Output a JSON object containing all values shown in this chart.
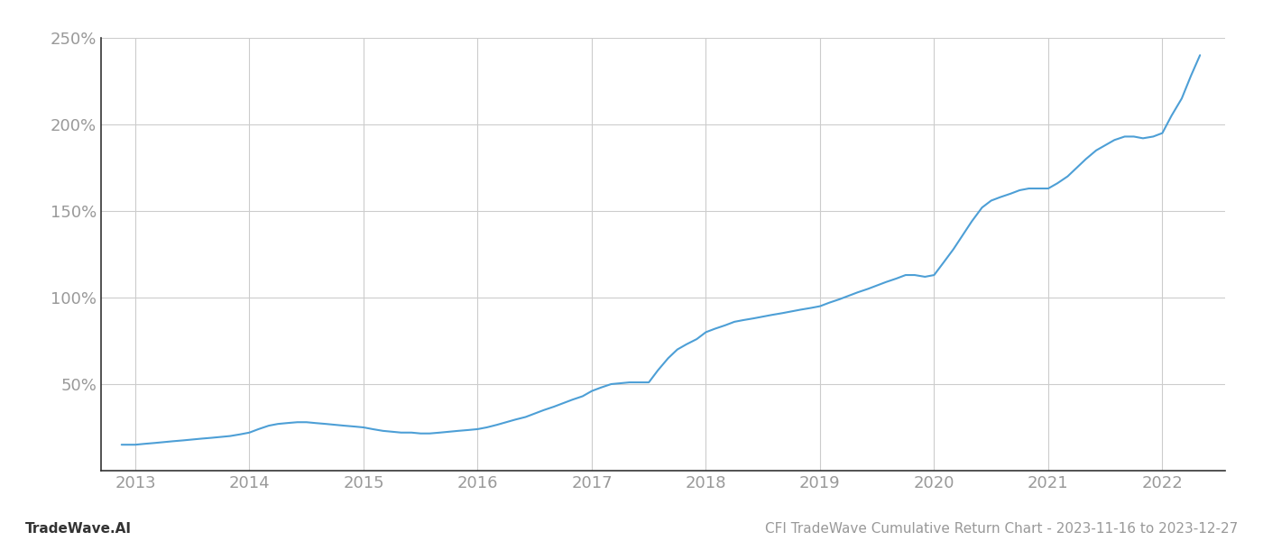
{
  "title": "",
  "footer_left": "TradeWave.AI",
  "footer_right": "CFI TradeWave Cumulative Return Chart - 2023-11-16 to 2023-12-27",
  "line_color": "#4d9fd6",
  "background_color": "#ffffff",
  "grid_color": "#cccccc",
  "x_years": [
    2013,
    2014,
    2015,
    2016,
    2017,
    2018,
    2019,
    2020,
    2021,
    2022
  ],
  "x_data": [
    2012.88,
    2013.0,
    2013.08,
    2013.17,
    2013.25,
    2013.33,
    2013.42,
    2013.5,
    2013.58,
    2013.67,
    2013.75,
    2013.83,
    2013.92,
    2014.0,
    2014.08,
    2014.17,
    2014.25,
    2014.33,
    2014.42,
    2014.5,
    2014.58,
    2014.67,
    2014.75,
    2014.83,
    2014.92,
    2015.0,
    2015.08,
    2015.17,
    2015.25,
    2015.33,
    2015.42,
    2015.5,
    2015.58,
    2015.67,
    2015.75,
    2015.83,
    2015.92,
    2016.0,
    2016.08,
    2016.17,
    2016.25,
    2016.33,
    2016.42,
    2016.5,
    2016.58,
    2016.67,
    2016.75,
    2016.83,
    2016.92,
    2017.0,
    2017.08,
    2017.17,
    2017.25,
    2017.33,
    2017.42,
    2017.5,
    2017.58,
    2017.67,
    2017.75,
    2017.83,
    2017.92,
    2018.0,
    2018.08,
    2018.17,
    2018.25,
    2018.33,
    2018.42,
    2018.5,
    2018.58,
    2018.67,
    2018.75,
    2018.83,
    2018.92,
    2019.0,
    2019.08,
    2019.17,
    2019.25,
    2019.33,
    2019.42,
    2019.5,
    2019.58,
    2019.67,
    2019.75,
    2019.83,
    2019.92,
    2020.0,
    2020.08,
    2020.17,
    2020.25,
    2020.33,
    2020.42,
    2020.5,
    2020.58,
    2020.67,
    2020.75,
    2020.83,
    2020.92,
    2021.0,
    2021.08,
    2021.17,
    2021.25,
    2021.33,
    2021.42,
    2021.5,
    2021.58,
    2021.67,
    2021.75,
    2021.83,
    2021.92,
    2022.0,
    2022.08,
    2022.17,
    2022.25,
    2022.33
  ],
  "y_data": [
    15,
    15,
    15.5,
    16,
    16.5,
    17,
    17.5,
    18,
    18.5,
    19,
    19.5,
    20,
    21,
    22,
    24,
    26,
    27,
    27.5,
    28,
    28,
    27.5,
    27,
    26.5,
    26,
    25.5,
    25,
    24,
    23,
    22.5,
    22,
    22,
    21.5,
    21.5,
    22,
    22.5,
    23,
    23.5,
    24,
    25,
    26.5,
    28,
    29.5,
    31,
    33,
    35,
    37,
    39,
    41,
    43,
    46,
    48,
    50,
    50.5,
    51,
    51,
    51,
    58,
    65,
    70,
    73,
    76,
    80,
    82,
    84,
    86,
    87,
    88,
    89,
    90,
    91,
    92,
    93,
    94,
    95,
    97,
    99,
    101,
    103,
    105,
    107,
    109,
    111,
    113,
    113,
    112,
    113,
    120,
    128,
    136,
    144,
    152,
    156,
    158,
    160,
    162,
    163,
    163,
    163,
    166,
    170,
    175,
    180,
    185,
    188,
    191,
    193,
    193,
    192,
    193,
    195,
    205,
    215,
    228,
    240
  ],
  "yticks": [
    50,
    100,
    150,
    200,
    250
  ],
  "ylim": [
    0,
    250
  ],
  "xlim": [
    2012.7,
    2022.55
  ],
  "line_width": 1.5,
  "footer_fontsize": 11,
  "tick_fontsize": 13,
  "spine_color": "#333333",
  "axis_text_color": "#999999",
  "left_spine_color": "#333333"
}
